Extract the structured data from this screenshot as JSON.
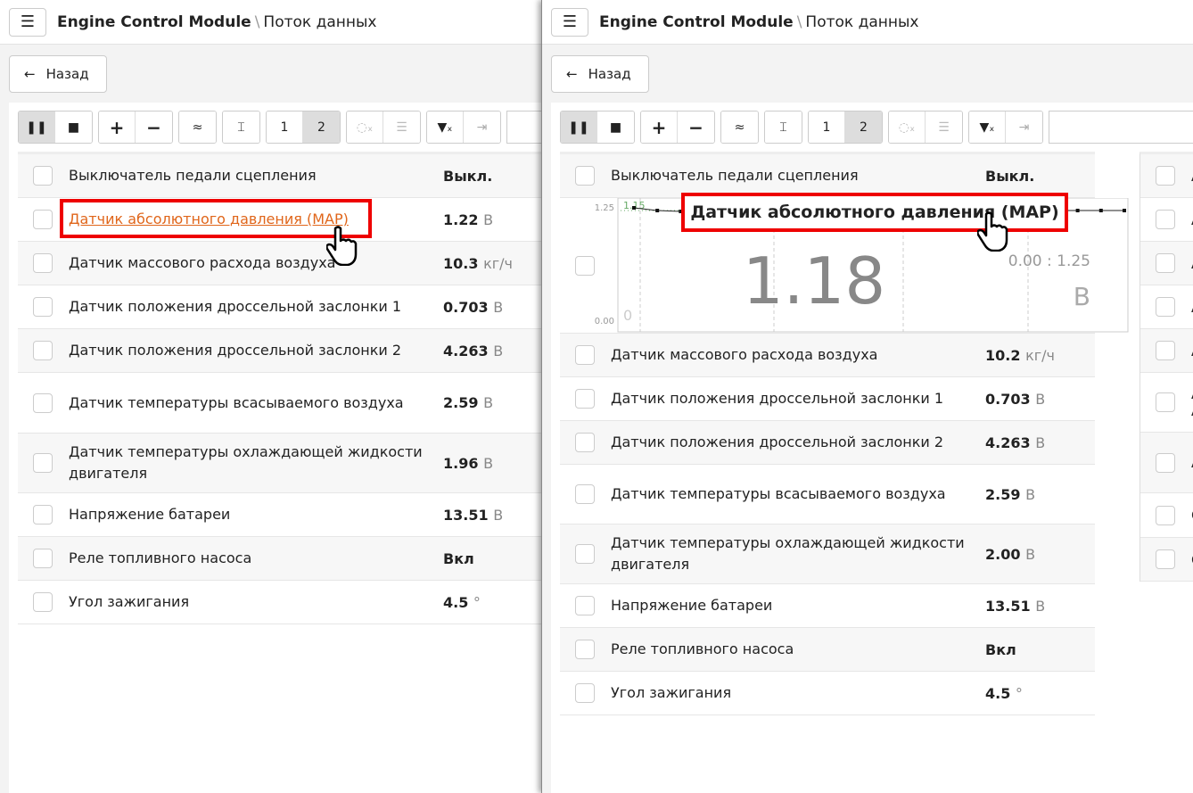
{
  "header": {
    "title": "Engine Control Module",
    "separator": "\\",
    "subtitle": "Поток данных",
    "menu_icon": "hamburger-icon"
  },
  "back_label": "Назад",
  "toolbar": {
    "pause": "❚❚",
    "stop": "■",
    "plus": "+",
    "minus": "−",
    "approx": "≈",
    "fit": "⌶",
    "one": "1",
    "two": "2",
    "clear": "◌ₓ",
    "list": "☰",
    "filter_clear": "▼ₓ",
    "goto": "⇥"
  },
  "left": {
    "rows": [
      {
        "label": "Выключатель педали сцепления",
        "value": "Выкл.",
        "unit": ""
      },
      {
        "label": "Датчик абсолютного давления (MAP)",
        "value": "1.22",
        "unit": "В",
        "link": true
      },
      {
        "label": "Датчик массового расхода воздуха",
        "value": "10.3",
        "unit": "кг/ч"
      },
      {
        "label": "Датчик положения дроссельной заслонки 1",
        "value": "0.703",
        "unit": "В"
      },
      {
        "label": "Датчик положения дроссельной заслонки 2",
        "value": "4.263",
        "unit": "В"
      },
      {
        "label": "Датчик температуры всасываемого воздуха",
        "value": "2.59",
        "unit": "В",
        "h": 68
      },
      {
        "label": "Датчик температуры охлаждающей жидкости двигателя",
        "value": "1.96",
        "unit": "В",
        "h": 67
      },
      {
        "label": "Напряжение батареи",
        "value": "13.51",
        "unit": "В"
      },
      {
        "label": "Реле топливного насоса",
        "value": "Вкл",
        "unit": ""
      },
      {
        "label": "Угол зажигания",
        "value": "4.5",
        "unit": "°"
      }
    ]
  },
  "right": {
    "rows": [
      {
        "label": "Выключатель педали сцепления",
        "value": "Выкл.",
        "unit": ""
      },
      {
        "chart": true
      },
      {
        "label": "Датчик массового расхода воздуха",
        "value": "10.2",
        "unit": "кг/ч"
      },
      {
        "label": "Датчик положения дроссельной заслонки 1",
        "value": "0.703",
        "unit": "В"
      },
      {
        "label": "Датчик положения дроссельной заслонки 2",
        "value": "4.263",
        "unit": "В"
      },
      {
        "label": "Датчик температуры всасываемого воздуха",
        "value": "2.59",
        "unit": "В",
        "h": 67
      },
      {
        "label": "Датчик температуры охлаждающей жидкости двигателя",
        "value": "2.00",
        "unit": "В",
        "h": 67
      },
      {
        "label": "Напряжение батареи",
        "value": "13.51",
        "unit": "В"
      },
      {
        "label": "Реле топливного насоса",
        "value": "Вкл",
        "unit": ""
      },
      {
        "label": "Угол зажигания",
        "value": "4.5",
        "unit": "°"
      }
    ],
    "col2_rows": [
      "А",
      "А",
      "А",
      "А",
      "А",
      "А А",
      "А",
      "С",
      "С"
    ]
  },
  "tooltip": "Датчик абсолютного давления (MAP)",
  "chart_data": {
    "type": "line",
    "current": "1.18",
    "range": "0.00 : 1.25",
    "unit": "В",
    "ymax_label": "1.25",
    "ymin_label": "0.00",
    "marker_label": "1.15",
    "xstart_label": "0",
    "ylim": [
      0,
      1.25
    ],
    "values": [
      1.25,
      1.22,
      1.21,
      1.23,
      1.23,
      1.23,
      1.22,
      1.22,
      1.22,
      1.22,
      1.22,
      1.2,
      1.09,
      1.12,
      1.2,
      1.22,
      1.22,
      1.22,
      1.22,
      1.22,
      1.22,
      1.22
    ]
  },
  "colors": {
    "highlight": "#e00000",
    "link": "#e0661b"
  }
}
